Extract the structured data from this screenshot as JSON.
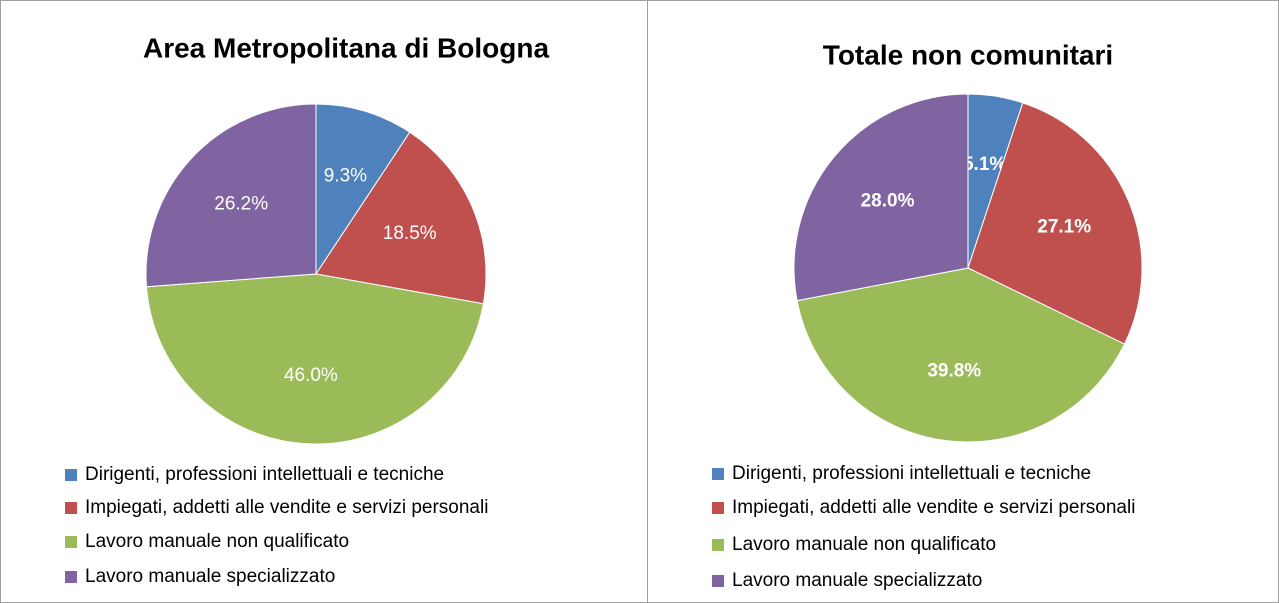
{
  "chart_data": [
    {
      "type": "pie",
      "title": "Area Metropolitana di Bologna",
      "categories": [
        "Dirigenti, professioni intellettuali e tecniche",
        "Impiegati, addetti alle vendite e servizi personali",
        "Lavoro manuale non qualificato",
        "Lavoro manuale specializzato"
      ],
      "values": [
        9.3,
        18.5,
        46.0,
        26.2
      ],
      "value_labels": [
        "9.3%",
        "18.5%",
        "46.0%",
        "26.2%"
      ],
      "colors": [
        "#4f81bd",
        "#c0504d",
        "#9bbb59",
        "#8064a2"
      ]
    },
    {
      "type": "pie",
      "title": "Totale non comunitari",
      "categories": [
        "Dirigenti, professioni intellettuali e tecniche",
        "Impiegati, addetti alle vendite e servizi personali",
        "Lavoro manuale non qualificato",
        "Lavoro manuale specializzato"
      ],
      "values": [
        5.1,
        27.1,
        39.8,
        28.0
      ],
      "value_labels": [
        "5.1%",
        "27.1%",
        "39.8%",
        "28.0%"
      ],
      "colors": [
        "#4f81bd",
        "#c0504d",
        "#9bbb59",
        "#8064a2"
      ]
    }
  ]
}
